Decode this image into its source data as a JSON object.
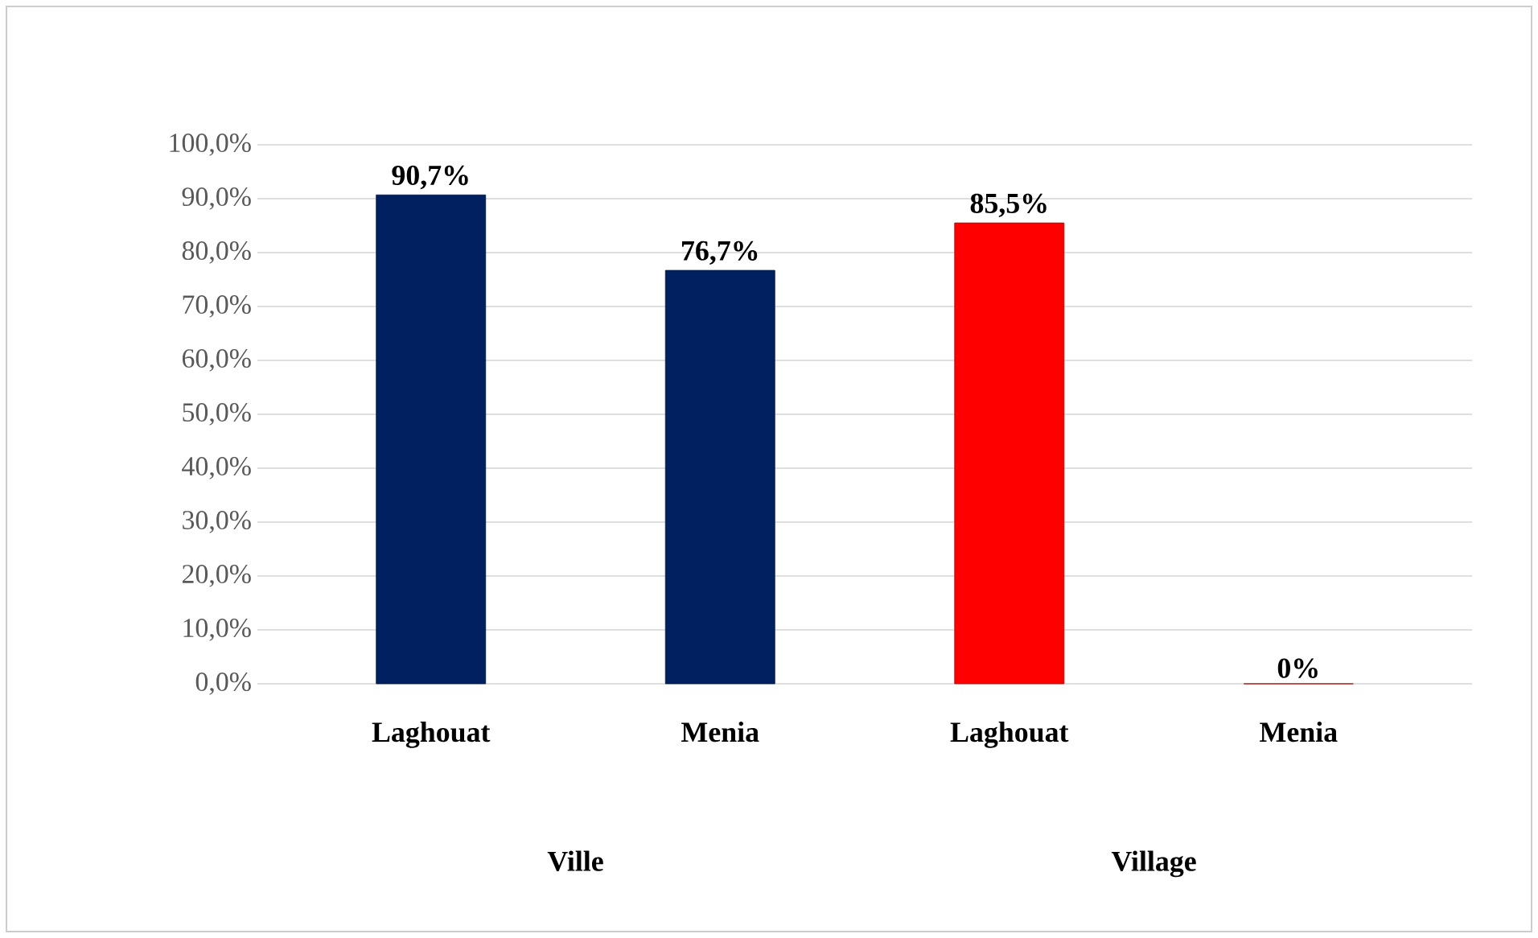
{
  "chart_data": {
    "type": "bar",
    "categories": [
      "Laghouat",
      "Menia",
      "Laghouat",
      "Menia"
    ],
    "values": [
      90.7,
      76.7,
      85.5,
      0
    ],
    "colors": [
      "#002060",
      "#002060",
      "#ff0000",
      "#ff0000"
    ],
    "value_labels": [
      "90,7%",
      "76,7%",
      "85,5%",
      "0%"
    ],
    "annotations": [
      "Ville",
      "Village"
    ],
    "ylim": [
      0,
      100
    ],
    "yticks": [
      {
        "value": 0,
        "label": "0,0%"
      },
      {
        "value": 10,
        "label": "10,0%"
      },
      {
        "value": 20,
        "label": "20,0%"
      },
      {
        "value": 30,
        "label": "30,0%"
      },
      {
        "value": 40,
        "label": "40,0%"
      },
      {
        "value": 50,
        "label": "50,0%"
      },
      {
        "value": 60,
        "label": "60,0%"
      },
      {
        "value": 70,
        "label": "70,0%"
      },
      {
        "value": 80,
        "label": "80,0%"
      },
      {
        "value": 90,
        "label": "90,0%"
      },
      {
        "value": 100,
        "label": "100,0%"
      }
    ],
    "grid": "y"
  }
}
